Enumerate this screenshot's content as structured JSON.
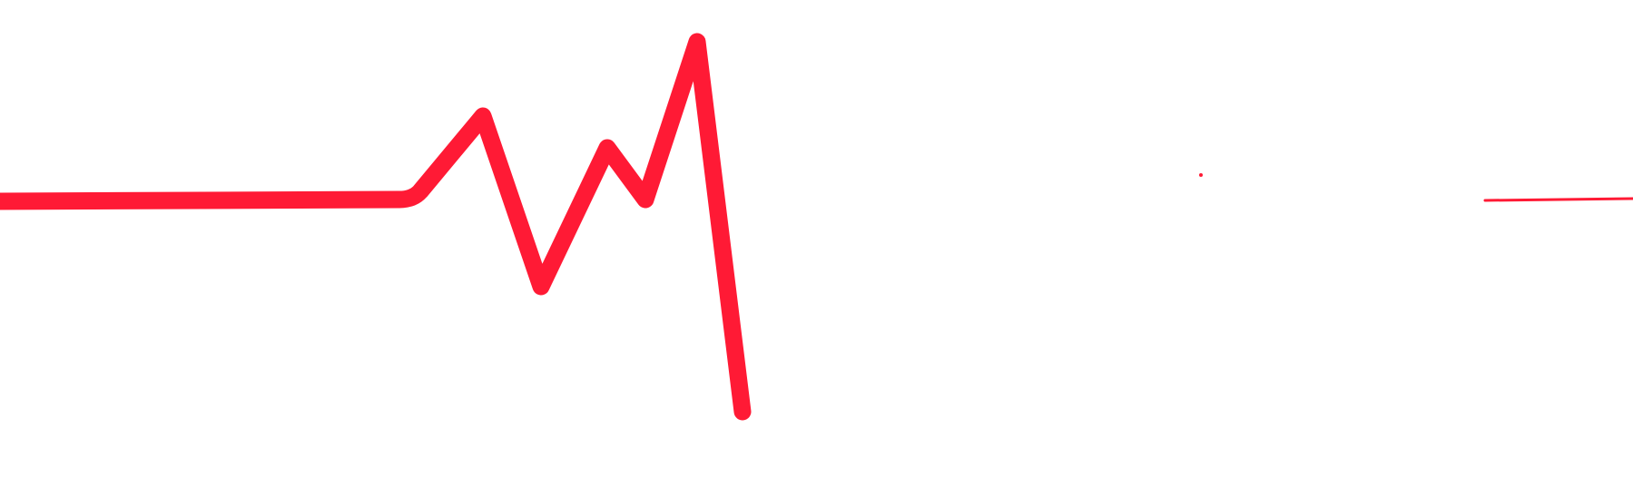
{
  "graphic": {
    "name": "heartbeat-pulse-line",
    "stroke_color": "#FF1A35",
    "background_color": "#FFFFFF"
  }
}
